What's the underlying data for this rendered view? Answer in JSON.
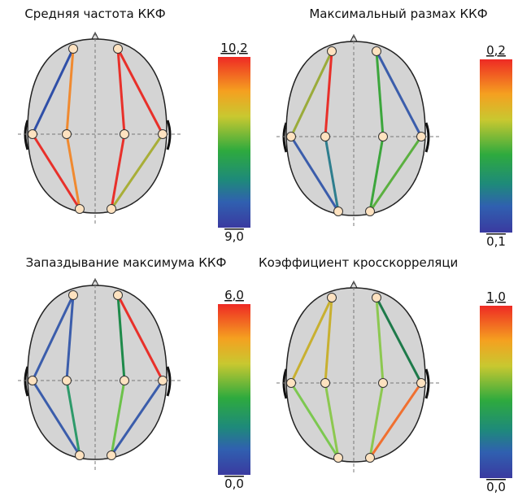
{
  "panels": [
    {
      "title": "Средняя частота ККФ",
      "scale_max": "10,2",
      "scale_min": "9,0",
      "connection_colors": [
        "#2f4fa8",
        "#f08a30",
        "#f08a30",
        "#e8302a",
        "#e8302a",
        "#e8302a",
        "#e8302a",
        "#a8ae38"
      ]
    },
    {
      "title": "Максимальный размах ККФ",
      "scale_max": "0,2",
      "scale_min": "0,1",
      "connection_colors": [
        "#9aab3a",
        "#e8302a",
        "#2e7e8e",
        "#3b5dab",
        "#3ca63c",
        "#3ca63c",
        "#3b5dab",
        "#5bb040"
      ]
    },
    {
      "title": "Запаздывание максимума ККФ",
      "scale_max": "6,0",
      "scale_min": "0,0",
      "connection_colors": [
        "#3b5dab",
        "#3b5dab",
        "#2e9a6a",
        "#3b5dab",
        "#1e8a4a",
        "#6cc24a",
        "#e8302a",
        "#3b5dab"
      ]
    },
    {
      "title": "Коэффициент кросскорреляци",
      "scale_max": "1,0",
      "scale_min": "0,0",
      "connection_colors": [
        "#c8b030",
        "#c8b030",
        "#8cc850",
        "#7cc850",
        "#8cc850",
        "#8cc850",
        "#1e7a4a",
        "#f07030"
      ]
    }
  ]
}
